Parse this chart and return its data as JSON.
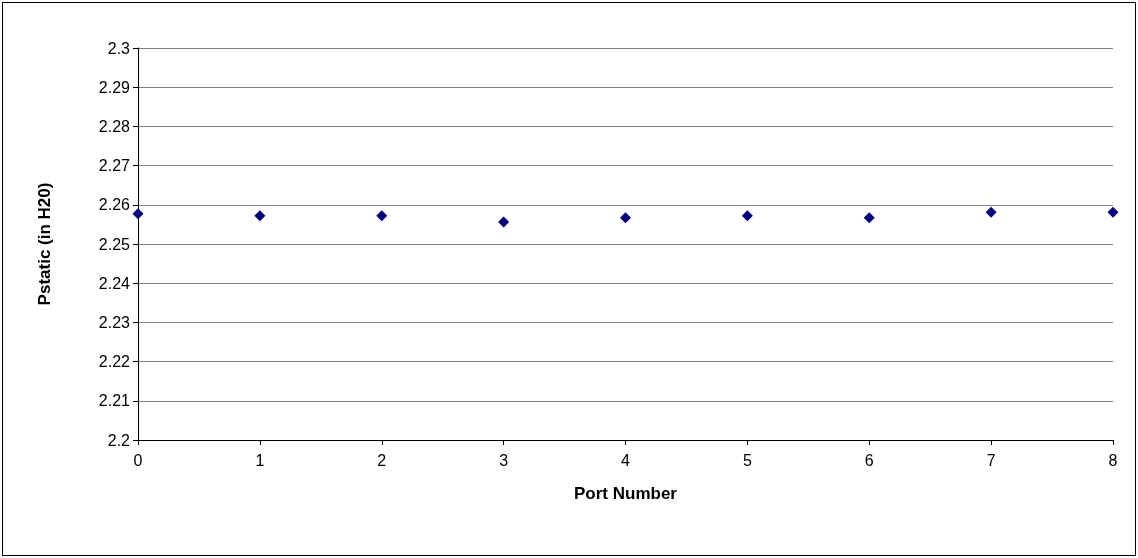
{
  "chart_data": {
    "type": "scatter",
    "xlabel": "Port Number",
    "ylabel": "Pstatic (in H20)",
    "x": [
      0,
      1,
      2,
      3,
      4,
      5,
      6,
      7,
      8
    ],
    "series": [
      {
        "color": "#000080",
        "values": [
          2.2577,
          2.2572,
          2.2572,
          2.2556,
          2.2567,
          2.2572,
          2.2567,
          2.2581,
          2.2581
        ]
      }
    ],
    "xlim": [
      0,
      8
    ],
    "xticks": [
      0,
      1,
      2,
      3,
      4,
      5,
      6,
      7,
      8
    ],
    "ylim": [
      2.2,
      2.3
    ],
    "yticks": [
      2.2,
      2.21,
      2.22,
      2.23,
      2.24,
      2.25,
      2.26,
      2.27,
      2.28,
      2.29,
      2.3
    ],
    "grid": "y",
    "marker": "diamond"
  }
}
